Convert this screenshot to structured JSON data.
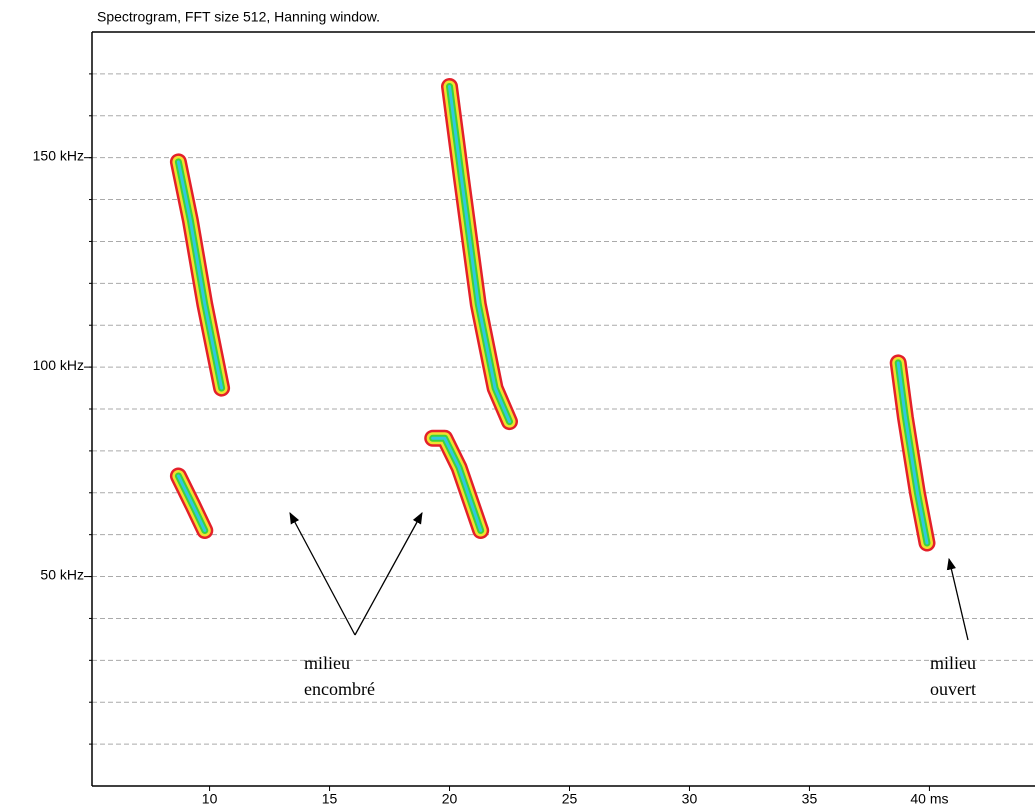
{
  "chart_data": {
    "type": "spectrogram",
    "title": "Spectrogram, FFT size 512, Hanning window.",
    "xlim": [
      5.1,
      44.4
    ],
    "xticks": [
      10,
      15,
      20,
      25,
      30,
      35,
      {
        "value": 40,
        "label": "40 ms"
      }
    ],
    "ylim": [
      0,
      180
    ],
    "yticks": [
      {
        "value": 50,
        "label": "50 kHz"
      },
      {
        "value": 100,
        "label": "100 kHz"
      },
      {
        "value": 150,
        "label": "150 kHz"
      }
    ],
    "grid_yticks": [
      10,
      20,
      30,
      40,
      50,
      60,
      70,
      80,
      90,
      100,
      110,
      120,
      130,
      140,
      150,
      160,
      170
    ],
    "grid": true,
    "colors": [
      "#e4202a",
      "#f0e030",
      "#3cd23c",
      "#30c8e0"
    ],
    "series": [
      {
        "x": [
          8.7,
          9.2,
          9.8,
          10.5
        ],
        "values": [
          149,
          135,
          115,
          95
        ]
      },
      {
        "x": [
          8.7,
          9.3,
          9.8
        ],
        "values": [
          74,
          67,
          61
        ]
      },
      {
        "x": [
          20.0,
          20.5,
          21.2,
          21.9,
          22.5
        ],
        "values": [
          167,
          145,
          115,
          95,
          87
        ]
      },
      {
        "x": [
          19.3,
          19.8,
          20.4,
          21.3
        ],
        "values": [
          83,
          83,
          76,
          61
        ]
      },
      {
        "x": [
          38.7,
          39.0,
          39.5,
          39.9
        ],
        "values": [
          101,
          88,
          70,
          58
        ]
      }
    ],
    "annotations": [
      {
        "lines": [
          "milieu",
          "encombré"
        ]
      },
      {
        "lines": [
          "milieu",
          "ouvert"
        ]
      }
    ]
  }
}
